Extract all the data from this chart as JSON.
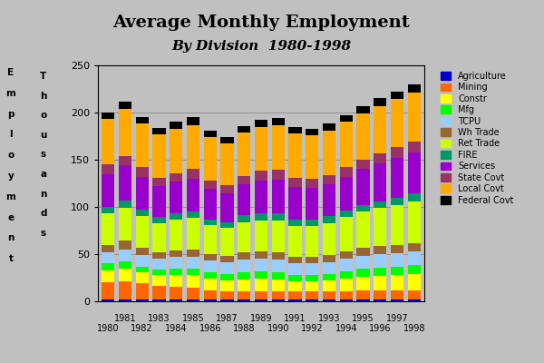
{
  "title": "Average Monthly Employment",
  "subtitle": "By Division  1980-1998",
  "years": [
    1980,
    1981,
    1982,
    1983,
    1984,
    1985,
    1986,
    1987,
    1988,
    1989,
    1990,
    1991,
    1992,
    1993,
    1994,
    1995,
    1996,
    1997,
    1998
  ],
  "categories": [
    "Agriculture",
    "Mining",
    "Constr",
    "Mfg",
    "TCPU",
    "Wh Trade",
    "Ret Trade",
    "FIRE",
    "Services",
    "State Covt",
    "Local Covt",
    "Federal Covt"
  ],
  "colors": [
    "#0000CC",
    "#FF6600",
    "#FFFF00",
    "#00FF00",
    "#99CCFF",
    "#996633",
    "#CCFF00",
    "#009966",
    "#9900CC",
    "#993366",
    "#FFAA00",
    "#000000"
  ],
  "data": {
    "Agriculture": [
      2,
      2,
      2,
      2,
      2,
      2,
      2,
      2,
      2,
      2,
      2,
      2,
      2,
      2,
      2,
      2,
      2,
      2,
      2
    ],
    "Mining": [
      18,
      19,
      17,
      14,
      13,
      12,
      10,
      9,
      9,
      9,
      9,
      9,
      9,
      9,
      9,
      10,
      10,
      10,
      10
    ],
    "Constr": [
      13,
      14,
      12,
      12,
      13,
      14,
      12,
      11,
      12,
      13,
      12,
      10,
      10,
      11,
      13,
      14,
      15,
      16,
      17
    ],
    "Mfg": [
      7,
      7,
      6,
      6,
      7,
      7,
      7,
      7,
      8,
      8,
      8,
      7,
      7,
      7,
      8,
      9,
      9,
      9,
      9
    ],
    "TCPU": [
      12,
      13,
      12,
      11,
      12,
      12,
      12,
      12,
      13,
      13,
      13,
      12,
      12,
      12,
      13,
      13,
      14,
      14,
      15
    ],
    "Wh Trade": [
      8,
      9,
      8,
      7,
      7,
      8,
      7,
      7,
      8,
      8,
      8,
      7,
      7,
      8,
      8,
      9,
      9,
      9,
      9
    ],
    "Ret Trade": [
      33,
      35,
      33,
      31,
      33,
      33,
      31,
      30,
      32,
      33,
      34,
      33,
      33,
      34,
      36,
      38,
      40,
      42,
      44
    ],
    "FIRE": [
      7,
      8,
      7,
      6,
      6,
      7,
      6,
      6,
      7,
      7,
      7,
      7,
      7,
      7,
      7,
      7,
      7,
      8,
      8
    ],
    "Services": [
      35,
      37,
      35,
      33,
      34,
      35,
      32,
      30,
      33,
      35,
      36,
      34,
      33,
      34,
      36,
      38,
      40,
      42,
      44
    ],
    "State Covt": [
      10,
      10,
      10,
      9,
      9,
      10,
      9,
      9,
      9,
      10,
      10,
      10,
      10,
      10,
      10,
      10,
      11,
      11,
      11
    ],
    "Local Covt": [
      48,
      50,
      46,
      46,
      47,
      47,
      46,
      44,
      46,
      47,
      48,
      47,
      46,
      47,
      48,
      49,
      50,
      51,
      52
    ],
    "Federal Covt": [
      7,
      8,
      7,
      7,
      7,
      8,
      7,
      7,
      7,
      7,
      7,
      7,
      7,
      7,
      7,
      8,
      8,
      8,
      9
    ]
  },
  "ylim": [
    0,
    250
  ],
  "yticks": [
    0,
    50,
    100,
    150,
    200,
    250
  ],
  "bg_color": "#C0C0C0",
  "plot_bg_color": "#C0C0C0",
  "title_fontsize": 14,
  "subtitle_fontsize": 11,
  "bar_width": 0.75
}
